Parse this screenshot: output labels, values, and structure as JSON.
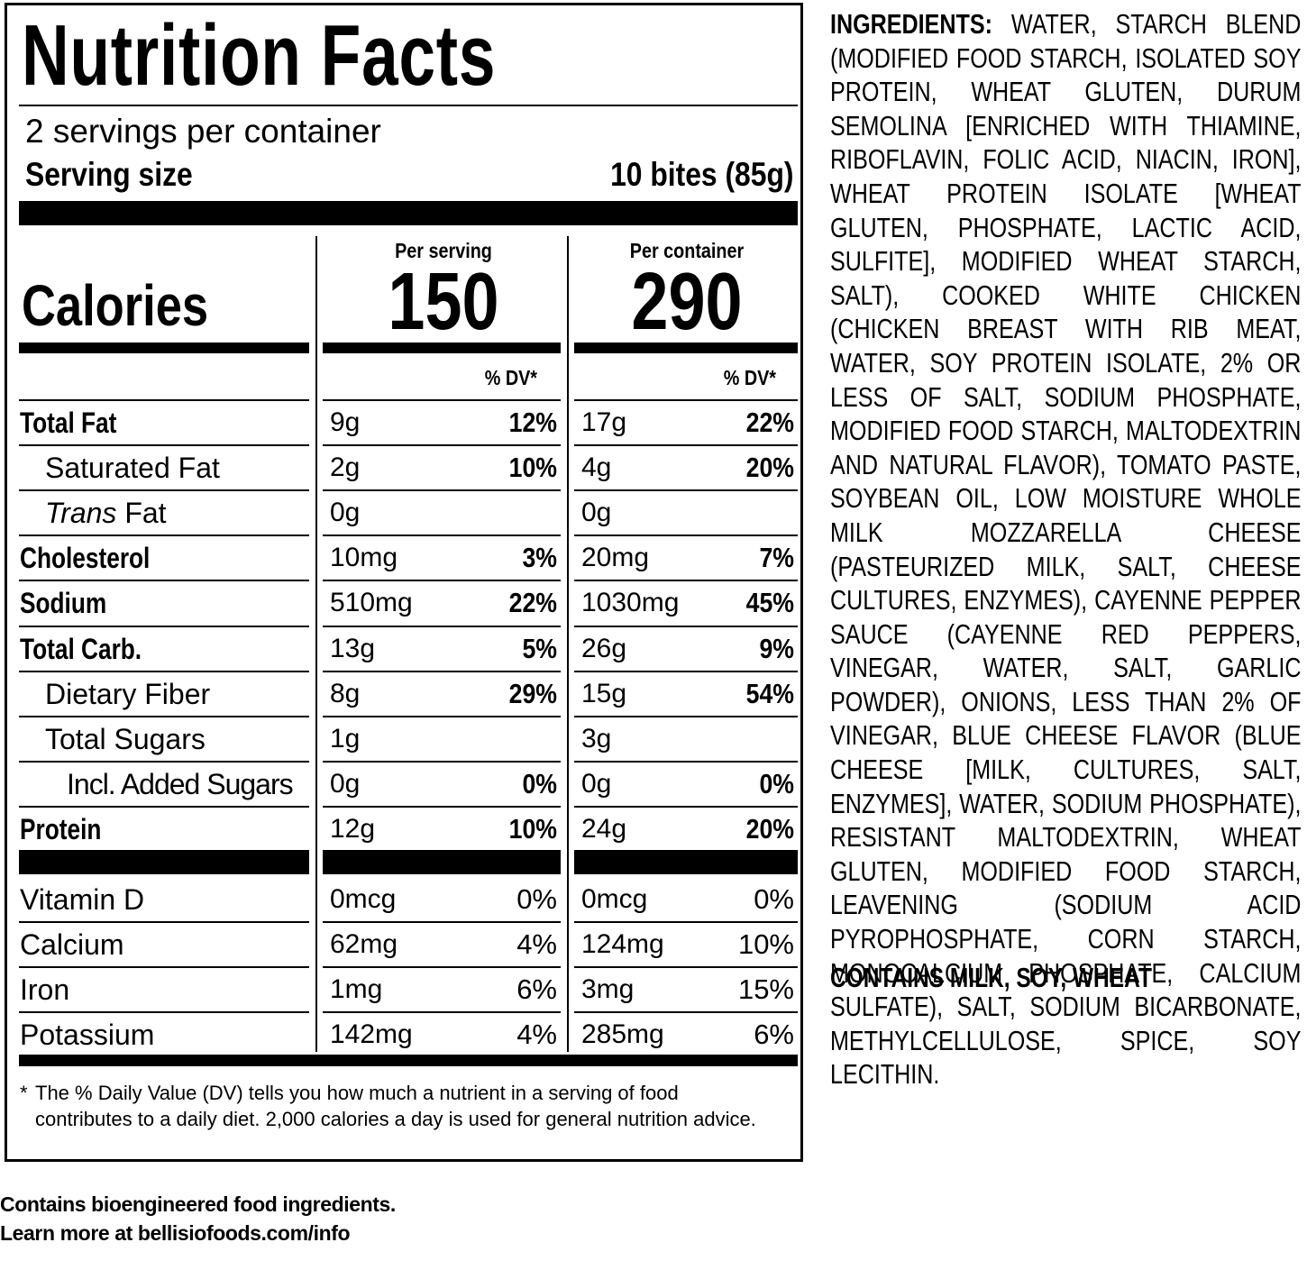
{
  "nutrition": {
    "title": "Nutrition Facts",
    "servings_per_container": "2 servings per container",
    "serving_size_label": "Serving size",
    "serving_size_value": "10 bites (85g)",
    "per_serving_label": "Per serving",
    "per_container_label": "Per container",
    "calories_label": "Calories",
    "calories_serving": "150",
    "calories_container": "290",
    "dv_header": "% DV*",
    "rows": [
      {
        "label": "Total Fat",
        "amt_s": "9g",
        "dv_s": "12%",
        "amt_c": "17g",
        "dv_c": "22%"
      },
      {
        "label": "Saturated Fat",
        "amt_s": "2g",
        "dv_s": "10%",
        "amt_c": "4g",
        "dv_c": "20%"
      },
      {
        "label_italic": "Trans",
        "label": " Fat",
        "amt_s": "0g",
        "dv_s": "",
        "amt_c": "0g",
        "dv_c": ""
      },
      {
        "label": "Cholesterol",
        "amt_s": "10mg",
        "dv_s": "3%",
        "amt_c": "20mg",
        "dv_c": "7%"
      },
      {
        "label": "Sodium",
        "amt_s": "510mg",
        "dv_s": "22%",
        "amt_c": "1030mg",
        "dv_c": "45%"
      },
      {
        "label": "Total Carb.",
        "amt_s": "13g",
        "dv_s": "5%",
        "amt_c": "26g",
        "dv_c": "9%"
      },
      {
        "label": "Dietary Fiber",
        "amt_s": "8g",
        "dv_s": "29%",
        "amt_c": "15g",
        "dv_c": "54%"
      },
      {
        "label": "Total Sugars",
        "amt_s": "1g",
        "dv_s": "",
        "amt_c": "3g",
        "dv_c": ""
      },
      {
        "label": "Incl. Added Sugars",
        "amt_s": "0g",
        "dv_s": "0%",
        "amt_c": "0g",
        "dv_c": "0%"
      },
      {
        "label": "Protein",
        "amt_s": "12g",
        "dv_s": "10%",
        "amt_c": "24g",
        "dv_c": "20%"
      }
    ],
    "vitamins": [
      {
        "label": "Vitamin D",
        "amt_s": "0mcg",
        "dv_s": "0%",
        "amt_c": "0mcg",
        "dv_c": "0%"
      },
      {
        "label": "Calcium",
        "amt_s": "62mg",
        "dv_s": "4%",
        "amt_c": "124mg",
        "dv_c": "10%"
      },
      {
        "label": "Iron",
        "amt_s": "1mg",
        "dv_s": "6%",
        "amt_c": "3mg",
        "dv_c": "15%"
      },
      {
        "label": "Potassium",
        "amt_s": "142mg",
        "dv_s": "4%",
        "amt_c": "285mg",
        "dv_c": "6%"
      }
    ],
    "footnote_star": "*",
    "footnote": "The % Daily Value (DV) tells you how much a nutrient in a serving of food contributes to a daily diet. 2,000 calories a day is used for general nutrition advice."
  },
  "ingredients": {
    "title": "INGREDIENTS:",
    "text": "WATER, STARCH BLEND (MODIFIED FOOD STARCH, ISOLATED SOY PROTEIN, WHEAT GLUTEN, DURUM SEMOLINA [ENRICHED WITH THIAMINE, RIBOFLAVIN, FOLIC ACID, NIACIN, IRON], WHEAT PROTEIN ISOLATE [WHEAT GLUTEN, PHOSPHATE, LACTIC ACID, SULFITE], MODIFIED WHEAT STARCH, SALT), COOKED WHITE CHICKEN (CHICKEN BREAST WITH RIB MEAT, WATER, SOY PROTEIN ISOLATE, 2% OR LESS OF SALT, SODIUM PHOSPHATE, MODIFIED FOOD STARCH, MALTODEXTRIN AND NATURAL FLAVOR), TOMATO PASTE, SOYBEAN OIL, LOW MOISTURE WHOLE MILK MOZZARELLA CHEESE (PASTEURIZED MILK, SALT, CHEESE CULTURES, ENZYMES), CAYENNE PEPPER SAUCE (CAYENNE RED PEPPERS, VINEGAR, WATER, SALT, GARLIC POWDER), ONIONS, LESS THAN 2% OF VINEGAR, BLUE CHEESE FLAVOR (BLUE CHEESE [MILK, CULTURES, SALT, ENZYMES], WATER, SODIUM PHOSPHATE), RESISTANT MALTODEXTRIN, WHEAT GLUTEN, MODIFIED FOOD STARCH, LEAVENING (SODIUM ACID PYROPHOSPHATE, CORN STARCH, MONOCALCIUM PHOSPHATE, CALCIUM SULFATE), SALT, SODIUM BICARBONATE, METHYLCELLULOSE, SPICE, SOY LECITHIN.",
    "contains": "CONTAINS MILK, SOY, WHEAT"
  },
  "disclosure": {
    "line1": "Contains bioengineered food ingredients.",
    "line2": "Learn more at bellisiofoods.com/info"
  }
}
